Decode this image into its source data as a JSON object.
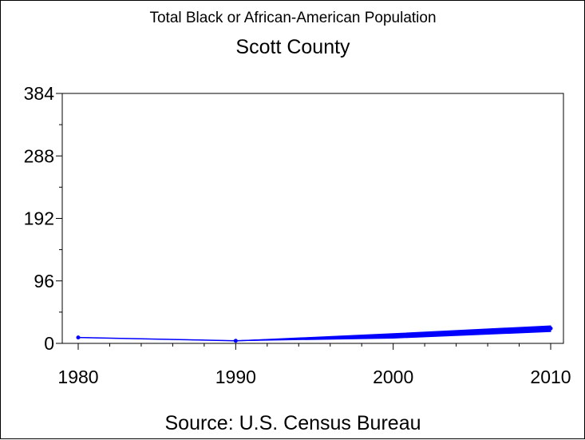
{
  "chart_data": {
    "type": "line",
    "title": "Total Black or African-American Population",
    "subtitle": "Scott County",
    "footnote": "Source: U.S. Census Bureau",
    "xlabel": "",
    "ylabel": "",
    "x": [
      1980,
      1990,
      2000,
      2010
    ],
    "x_ticks": [
      "1980",
      "1990",
      "2000",
      "2010"
    ],
    "y_ticks": [
      "0",
      "96",
      "192",
      "288",
      "384"
    ],
    "xlim": [
      1980,
      2010
    ],
    "ylim": [
      0,
      384
    ],
    "grid": false,
    "legend": "none",
    "series": [
      {
        "values": [
          9,
          4,
          12,
          23
        ],
        "band_low": [
          9,
          4,
          8,
          18
        ],
        "band_high": [
          9,
          4,
          15,
          27
        ],
        "color": "#0000ff"
      }
    ]
  }
}
